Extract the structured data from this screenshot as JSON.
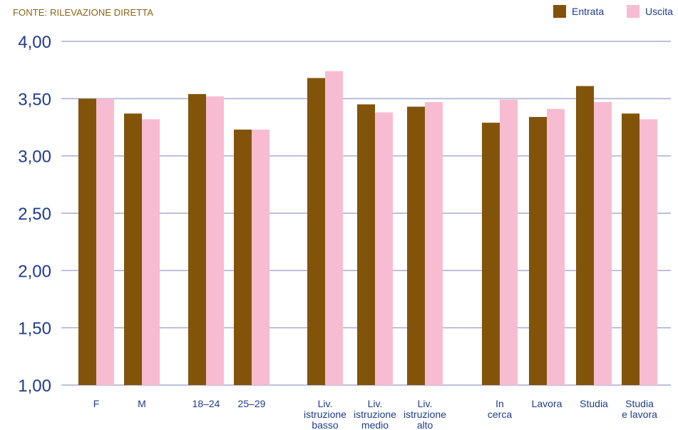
{
  "source": "FONTE: RILEVAZIONE DIRETTA",
  "colors": {
    "entrata": "#82540a",
    "uscita": "#f7bcd1",
    "grid": "#a7abd4",
    "text": "#1f3c8c"
  },
  "chart_data": {
    "type": "bar",
    "title": "",
    "xlabel": "",
    "ylabel": "",
    "ylim": [
      1.0,
      4.0
    ],
    "yticks": [
      "1,00",
      "1,50",
      "2,00",
      "2,50",
      "3,00",
      "3,50",
      "4,00"
    ],
    "legend_position": "top-right",
    "grid": true,
    "categories": [
      [
        "F"
      ],
      [
        "M"
      ],
      [
        "18–24"
      ],
      [
        "25–29"
      ],
      [
        "Liv.",
        "istruzione",
        "basso"
      ],
      [
        "Liv.",
        "istruzione",
        "medio"
      ],
      [
        "Liv.",
        "istruzione",
        "alto"
      ],
      [
        "In",
        "cerca"
      ],
      [
        "Lavora"
      ],
      [
        "Studia"
      ],
      [
        "Studia",
        "e lavora"
      ]
    ],
    "series": [
      {
        "name": "Entrata",
        "values": [
          3.5,
          3.37,
          3.54,
          3.23,
          3.68,
          3.45,
          3.43,
          3.29,
          3.34,
          3.61,
          3.37
        ]
      },
      {
        "name": "Uscita",
        "values": [
          3.5,
          3.32,
          3.52,
          3.23,
          3.74,
          3.38,
          3.47,
          3.49,
          3.41,
          3.47,
          3.32
        ]
      }
    ]
  }
}
